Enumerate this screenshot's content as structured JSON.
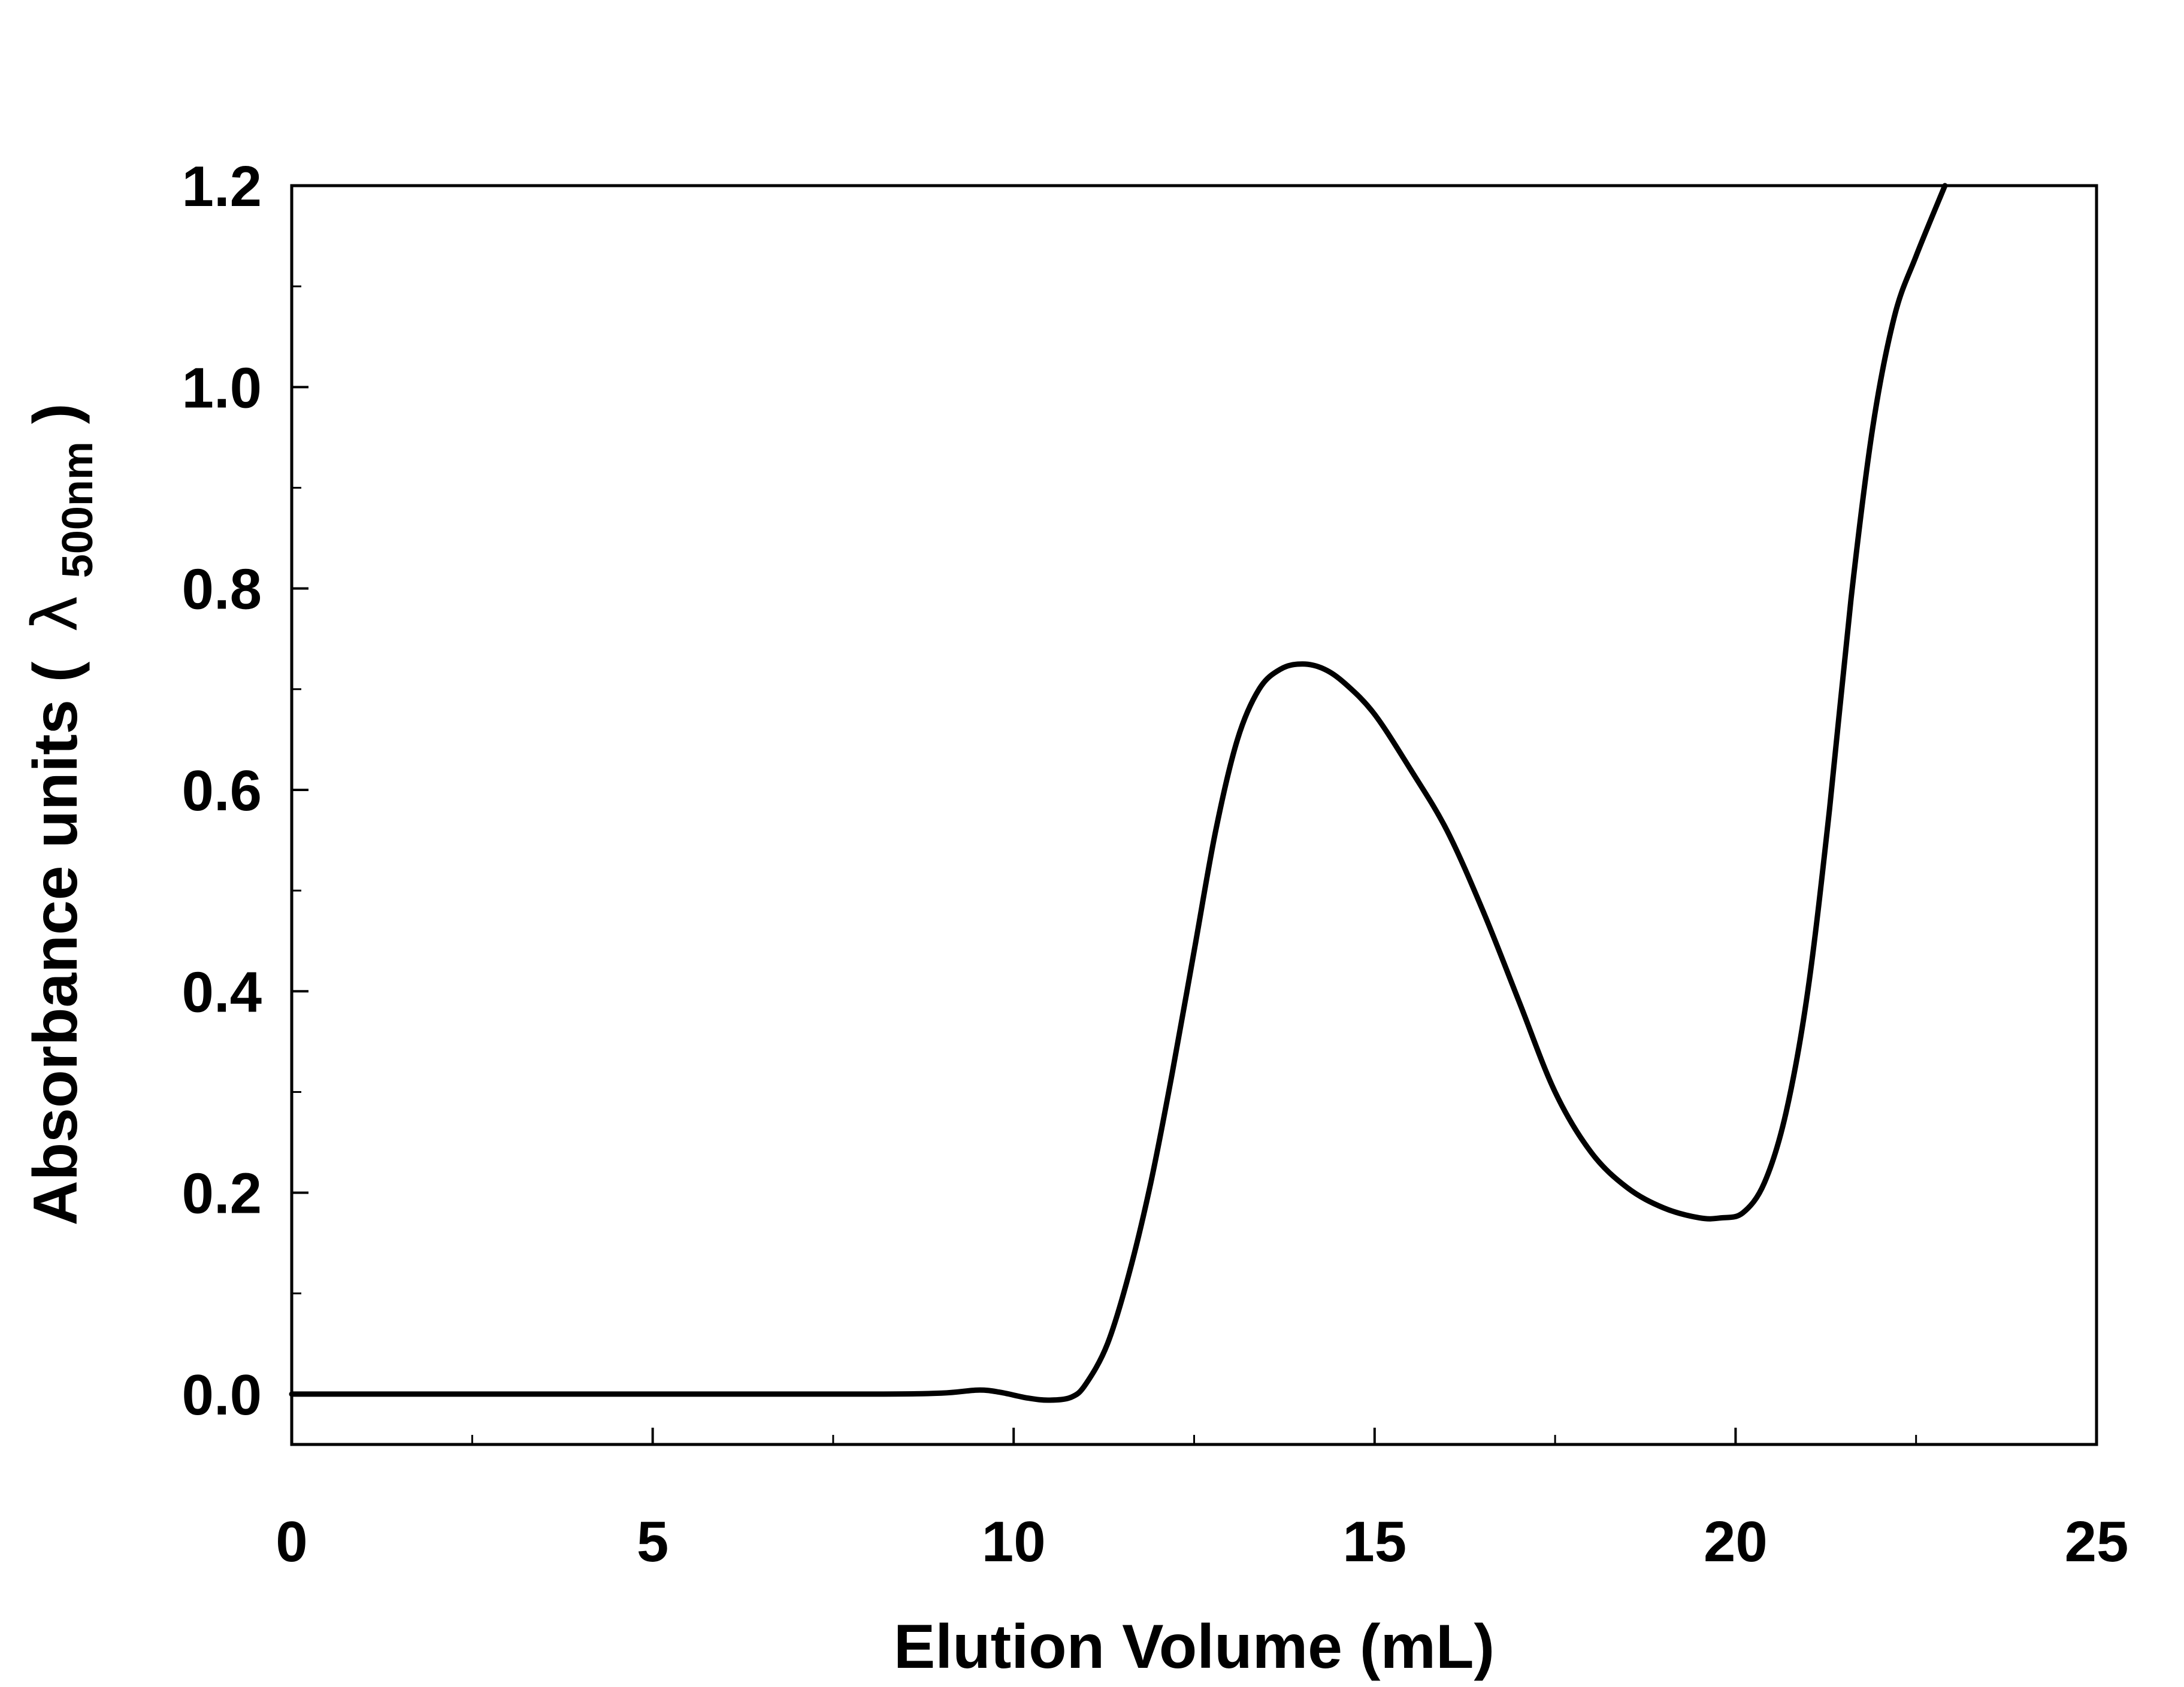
{
  "chart_data": {
    "type": "line",
    "title": "",
    "xlabel": "Elution Volume (mL)",
    "ylabel": {
      "text": "Absorbance units (",
      "symbol": "λ",
      "subscript": "500nm",
      "close": ")"
    },
    "xlim": [
      0,
      25
    ],
    "ylim": [
      -0.05,
      1.2
    ],
    "x_ticks": [
      {
        "value": 0,
        "label": "0"
      },
      {
        "value": 5,
        "label": "5"
      },
      {
        "value": 10,
        "label": "10"
      },
      {
        "value": 15,
        "label": "15"
      },
      {
        "value": 20,
        "label": "20"
      },
      {
        "value": 25,
        "label": "25"
      }
    ],
    "x_minor_ticks": [
      2.5,
      7.5,
      12.5,
      17.5,
      22.5
    ],
    "y_ticks": [
      {
        "value": 0.0,
        "label": "0.0"
      },
      {
        "value": 0.2,
        "label": "0.2"
      },
      {
        "value": 0.4,
        "label": "0.4"
      },
      {
        "value": 0.6,
        "label": "0.6"
      },
      {
        "value": 0.8,
        "label": "0.8"
      },
      {
        "value": 1.0,
        "label": "1.0"
      },
      {
        "value": 1.2,
        "label": "1.2"
      }
    ],
    "y_minor_ticks": [
      0.1,
      0.3,
      0.5,
      0.7,
      0.9,
      1.1
    ],
    "grid": false,
    "legend": "none",
    "line_color": "#000000",
    "series": [
      {
        "x": [
          0,
          5,
          8,
          9,
          9.5,
          9.8,
          10.2,
          10.5,
          10.8,
          11.0,
          11.3,
          11.6,
          11.9,
          12.2,
          12.5,
          12.8,
          13.1,
          13.4,
          13.7,
          14.0,
          14.3,
          14.6,
          15.0,
          15.5,
          16.0,
          16.5,
          17.0,
          17.5,
          18.0,
          18.5,
          19.0,
          19.5,
          19.8,
          20.1,
          20.4,
          20.7,
          21.0,
          21.3,
          21.6,
          21.9,
          22.2,
          22.5,
          22.9
        ],
        "y": [
          0.0,
          0.0,
          0.0,
          0.001,
          0.004,
          0.002,
          -0.004,
          -0.006,
          -0.003,
          0.01,
          0.05,
          0.12,
          0.21,
          0.32,
          0.44,
          0.56,
          0.65,
          0.7,
          0.72,
          0.725,
          0.72,
          0.705,
          0.675,
          0.62,
          0.56,
          0.48,
          0.39,
          0.3,
          0.24,
          0.205,
          0.185,
          0.175,
          0.175,
          0.18,
          0.21,
          0.28,
          0.4,
          0.58,
          0.79,
          0.96,
          1.07,
          1.13,
          1.2
        ]
      }
    ]
  }
}
